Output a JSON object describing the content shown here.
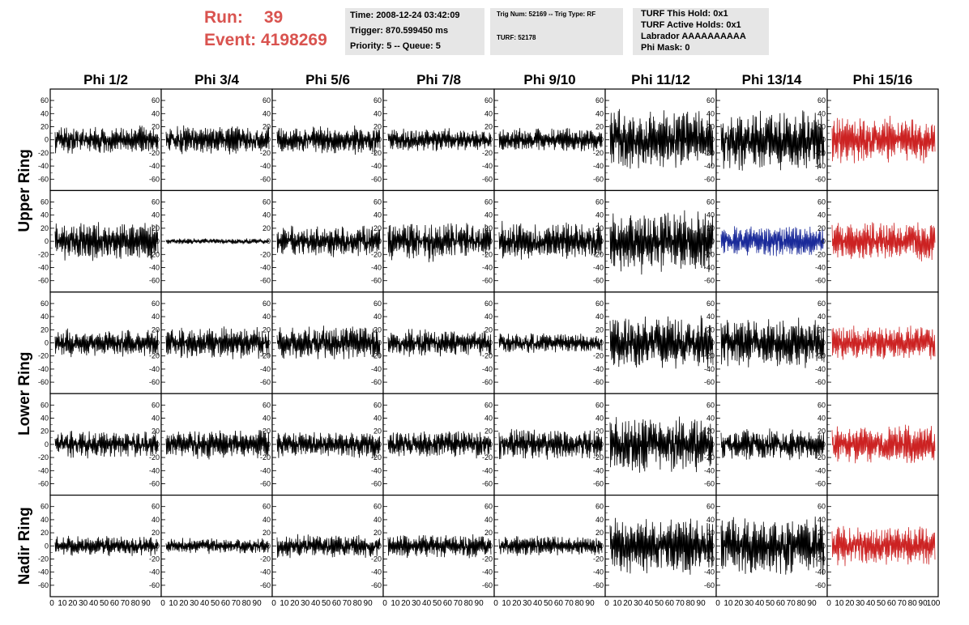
{
  "header": {
    "run_label": "Run:",
    "run_value": "39",
    "event_label": "Event:",
    "event_value": "4198269",
    "box1": [
      "Time: 2008-12-24 03:42:09",
      "Trigger: 870.599450 ms",
      "Priority: 5 -- Queue: 5"
    ],
    "box2_line1": "Trig Num: 52169 -- Trig Type: RF",
    "box2_line2": "TURF: 52178",
    "box3": [
      "TURF This Hold: 0x1",
      "TURF Active Holds: 0x1",
      "Labrador AAAAAAAAAA",
      "Phi Mask: 0"
    ]
  },
  "colors": {
    "normal": "#000000",
    "red": "#cc2222",
    "blue": "#1a2a99",
    "run_text": "#d9534f"
  },
  "chart_data": {
    "type": "line",
    "title": "",
    "columns": [
      "Phi 1/2",
      "Phi 3/4",
      "Phi 5/6",
      "Phi 7/8",
      "Phi 9/10",
      "Phi 11/12",
      "Phi 13/14",
      "Phi 15/16"
    ],
    "row_labels": [
      "Upper Ring",
      "Lower Ring",
      "Nadir Ring"
    ],
    "rows": 5,
    "ring_row_groups": [
      [
        0,
        1
      ],
      [
        2,
        3
      ],
      [
        4,
        4
      ]
    ],
    "ylim": [
      -70,
      70
    ],
    "yticks": [
      -60,
      -40,
      -20,
      0,
      20,
      40,
      60
    ],
    "xlim": [
      0,
      100
    ],
    "xticks": [
      0,
      10,
      20,
      30,
      40,
      50,
      60,
      70,
      80,
      90,
      100
    ],
    "xtick_labels": [
      "0",
      "10",
      "20",
      "30",
      "40",
      "50",
      "60",
      "70",
      "80",
      "90",
      "100"
    ],
    "amplitude_grid": [
      [
        14,
        15,
        15,
        12,
        12,
        30,
        32,
        24
      ],
      [
        20,
        3,
        16,
        20,
        20,
        32,
        16,
        20
      ],
      [
        14,
        16,
        18,
        14,
        10,
        28,
        25,
        18
      ],
      [
        14,
        15,
        14,
        14,
        16,
        30,
        16,
        20
      ],
      [
        10,
        8,
        12,
        12,
        10,
        30,
        30,
        22
      ]
    ],
    "color_grid": [
      [
        "normal",
        "normal",
        "normal",
        "normal",
        "normal",
        "normal",
        "normal",
        "red"
      ],
      [
        "normal",
        "normal",
        "normal",
        "normal",
        "normal",
        "normal",
        "blue",
        "red"
      ],
      [
        "normal",
        "normal",
        "normal",
        "normal",
        "normal",
        "normal",
        "normal",
        "red"
      ],
      [
        "normal",
        "normal",
        "normal",
        "normal",
        "normal",
        "normal",
        "normal",
        "red"
      ],
      [
        "normal",
        "normal",
        "normal",
        "normal",
        "normal",
        "normal",
        "normal",
        "red"
      ]
    ],
    "samples_per_trace": 200
  }
}
